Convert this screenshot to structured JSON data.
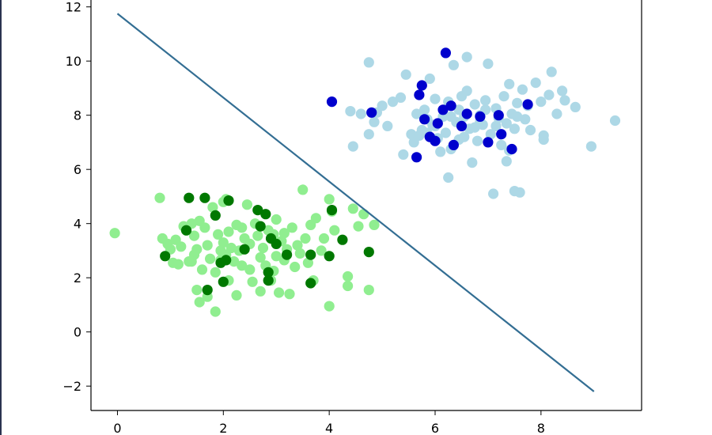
{
  "chart_data": {
    "type": "scatter",
    "title": "",
    "xlabel": "",
    "ylabel": "",
    "xlim": [
      -0.5,
      9.9
    ],
    "ylim": [
      -2.9,
      12.4
    ],
    "xticks": [
      0,
      2,
      4,
      6,
      8
    ],
    "yticks": [
      -2,
      0,
      2,
      4,
      6,
      8,
      10,
      12
    ],
    "xtick_labels": [
      "0",
      "2",
      "4",
      "6",
      "8"
    ],
    "ytick_labels": [
      "−2",
      "0",
      "2",
      "4",
      "6",
      "8",
      "10",
      "12"
    ],
    "grid": false,
    "legend": null,
    "series": [
      {
        "color": "#90ee90",
        "points": [
          [
            -0.05,
            3.65
          ],
          [
            0.8,
            4.95
          ],
          [
            0.85,
            3.45
          ],
          [
            0.95,
            3.25
          ],
          [
            1.0,
            3.05
          ],
          [
            1.05,
            2.55
          ],
          [
            1.1,
            3.4
          ],
          [
            1.15,
            2.5
          ],
          [
            1.25,
            3.9
          ],
          [
            1.3,
            3.75
          ],
          [
            1.35,
            2.6
          ],
          [
            1.4,
            4.0
          ],
          [
            1.45,
            3.55
          ],
          [
            1.45,
            2.85
          ],
          [
            1.5,
            3.05
          ],
          [
            1.5,
            1.55
          ],
          [
            1.55,
            4.1
          ],
          [
            1.6,
            2.3
          ],
          [
            1.65,
            3.85
          ],
          [
            1.7,
            1.3
          ],
          [
            1.7,
            3.2
          ],
          [
            1.75,
            2.7
          ],
          [
            1.8,
            4.6
          ],
          [
            1.85,
            2.2
          ],
          [
            1.85,
            0.75
          ],
          [
            1.9,
            3.6
          ],
          [
            1.95,
            2.65
          ],
          [
            2.0,
            3.3
          ],
          [
            2.05,
            4.9
          ],
          [
            2.05,
            2.85
          ],
          [
            2.1,
            3.7
          ],
          [
            2.1,
            1.9
          ],
          [
            2.15,
            3.1
          ],
          [
            2.2,
            2.6
          ],
          [
            2.25,
            1.35
          ],
          [
            2.25,
            3.95
          ],
          [
            2.3,
            3.0
          ],
          [
            2.35,
            2.45
          ],
          [
            2.4,
            3.45
          ],
          [
            2.45,
            4.7
          ],
          [
            2.5,
            2.3
          ],
          [
            2.5,
            3.25
          ],
          [
            2.55,
            1.85
          ],
          [
            2.6,
            4.0
          ],
          [
            2.65,
            3.55
          ],
          [
            2.7,
            2.75
          ],
          [
            2.75,
            3.1
          ],
          [
            2.8,
            2.45
          ],
          [
            2.85,
            3.75
          ],
          [
            2.9,
            1.9
          ],
          [
            2.95,
            3.6
          ],
          [
            3.0,
            2.8
          ],
          [
            3.0,
            4.15
          ],
          [
            3.05,
            1.45
          ],
          [
            3.1,
            3.35
          ],
          [
            3.15,
            2.65
          ],
          [
            3.2,
            3.05
          ],
          [
            3.25,
            1.4
          ],
          [
            3.3,
            3.85
          ],
          [
            3.35,
            2.4
          ],
          [
            3.4,
            3.2
          ],
          [
            3.45,
            2.9
          ],
          [
            3.5,
            5.25
          ],
          [
            3.55,
            3.45
          ],
          [
            3.6,
            2.55
          ],
          [
            3.65,
            3.95
          ],
          [
            3.7,
            1.9
          ],
          [
            3.75,
            4.2
          ],
          [
            3.85,
            3.0
          ],
          [
            3.9,
            3.45
          ],
          [
            4.0,
            4.9
          ],
          [
            4.0,
            0.95
          ],
          [
            4.05,
            4.45
          ],
          [
            4.1,
            3.75
          ],
          [
            4.35,
            2.05
          ],
          [
            4.35,
            1.7
          ],
          [
            4.45,
            4.55
          ],
          [
            4.55,
            3.9
          ],
          [
            4.65,
            4.35
          ],
          [
            4.75,
            1.55
          ],
          [
            4.85,
            3.95
          ],
          [
            2.0,
            4.8
          ],
          [
            1.4,
            2.6
          ],
          [
            2.7,
            1.5
          ],
          [
            1.55,
            1.1
          ],
          [
            2.35,
            3.85
          ],
          [
            3.15,
            3.65
          ],
          [
            1.95,
            3.0
          ],
          [
            1.2,
            3.15
          ],
          [
            2.95,
            2.25
          ]
        ]
      },
      {
        "color": "#007800",
        "points": [
          [
            0.9,
            2.8
          ],
          [
            1.3,
            3.75
          ],
          [
            1.35,
            4.95
          ],
          [
            1.65,
            4.95
          ],
          [
            1.85,
            4.3
          ],
          [
            1.95,
            2.55
          ],
          [
            2.0,
            1.85
          ],
          [
            2.05,
            2.65
          ],
          [
            2.1,
            4.85
          ],
          [
            2.4,
            3.05
          ],
          [
            2.65,
            4.5
          ],
          [
            2.7,
            3.9
          ],
          [
            2.8,
            4.35
          ],
          [
            2.85,
            2.2
          ],
          [
            2.9,
            3.45
          ],
          [
            3.0,
            3.25
          ],
          [
            3.2,
            2.85
          ],
          [
            3.65,
            2.85
          ],
          [
            3.65,
            1.8
          ],
          [
            4.0,
            2.8
          ],
          [
            4.05,
            4.5
          ],
          [
            4.25,
            3.4
          ],
          [
            4.75,
            2.95
          ],
          [
            1.7,
            1.55
          ],
          [
            2.85,
            1.9
          ]
        ]
      },
      {
        "color": "#add8e6",
        "points": [
          [
            4.4,
            8.15
          ],
          [
            4.45,
            6.85
          ],
          [
            4.6,
            8.05
          ],
          [
            4.75,
            9.95
          ],
          [
            4.75,
            7.3
          ],
          [
            4.85,
            7.75
          ],
          [
            4.9,
            8.1
          ],
          [
            5.0,
            8.35
          ],
          [
            5.1,
            7.6
          ],
          [
            5.2,
            8.5
          ],
          [
            5.35,
            8.65
          ],
          [
            5.4,
            6.55
          ],
          [
            5.45,
            9.5
          ],
          [
            5.55,
            7.3
          ],
          [
            5.6,
            7.0
          ],
          [
            5.65,
            8.05
          ],
          [
            5.75,
            7.45
          ],
          [
            5.8,
            8.2
          ],
          [
            5.85,
            7.85
          ],
          [
            5.9,
            9.35
          ],
          [
            5.95,
            7.65
          ],
          [
            6.0,
            8.6
          ],
          [
            6.05,
            7.15
          ],
          [
            6.1,
            6.65
          ],
          [
            6.15,
            7.95
          ],
          [
            6.2,
            7.35
          ],
          [
            6.25,
            8.5
          ],
          [
            6.3,
            6.75
          ],
          [
            6.35,
            9.85
          ],
          [
            6.4,
            7.75
          ],
          [
            6.45,
            7.1
          ],
          [
            6.5,
            8.7
          ],
          [
            6.55,
            7.95
          ],
          [
            6.6,
            10.15
          ],
          [
            6.65,
            7.5
          ],
          [
            6.7,
            6.25
          ],
          [
            6.75,
            8.4
          ],
          [
            6.8,
            7.05
          ],
          [
            6.85,
            8.0
          ],
          [
            6.9,
            7.65
          ],
          [
            6.95,
            8.55
          ],
          [
            7.0,
            9.9
          ],
          [
            7.05,
            7.3
          ],
          [
            7.1,
            5.1
          ],
          [
            7.15,
            8.25
          ],
          [
            7.2,
            7.9
          ],
          [
            7.25,
            6.9
          ],
          [
            7.3,
            8.7
          ],
          [
            7.35,
            6.3
          ],
          [
            7.4,
            9.15
          ],
          [
            7.45,
            8.05
          ],
          [
            7.5,
            7.5
          ],
          [
            7.5,
            5.2
          ],
          [
            7.55,
            8.45
          ],
          [
            7.6,
            5.15
          ],
          [
            7.65,
            8.95
          ],
          [
            7.7,
            7.85
          ],
          [
            7.75,
            8.35
          ],
          [
            7.8,
            7.45
          ],
          [
            7.9,
            9.2
          ],
          [
            8.0,
            8.5
          ],
          [
            8.05,
            7.1
          ],
          [
            8.15,
            8.75
          ],
          [
            8.2,
            9.6
          ],
          [
            8.3,
            8.05
          ],
          [
            8.4,
            8.9
          ],
          [
            8.45,
            8.55
          ],
          [
            8.65,
            8.3
          ],
          [
            8.95,
            6.85
          ],
          [
            9.4,
            7.8
          ],
          [
            6.0,
            7.6
          ],
          [
            6.3,
            7.95
          ],
          [
            6.55,
            7.2
          ],
          [
            6.85,
            7.75
          ],
          [
            7.15,
            7.6
          ],
          [
            6.45,
            8.2
          ],
          [
            6.75,
            7.55
          ],
          [
            5.7,
            7.25
          ],
          [
            7.35,
            7.7
          ],
          [
            6.25,
            5.7
          ],
          [
            5.85,
            7.35
          ],
          [
            6.95,
            8.2
          ],
          [
            7.55,
            7.95
          ],
          [
            6.6,
            8.9
          ],
          [
            8.05,
            7.25
          ],
          [
            7.4,
            6.7
          ]
        ]
      },
      {
        "color": "#0000cd",
        "points": [
          [
            4.05,
            8.5
          ],
          [
            4.8,
            8.1
          ],
          [
            5.7,
            8.75
          ],
          [
            5.75,
            9.1
          ],
          [
            5.8,
            7.85
          ],
          [
            5.9,
            7.2
          ],
          [
            6.0,
            7.05
          ],
          [
            6.05,
            7.7
          ],
          [
            6.15,
            8.2
          ],
          [
            6.2,
            10.3
          ],
          [
            6.3,
            8.35
          ],
          [
            6.35,
            6.9
          ],
          [
            6.5,
            7.6
          ],
          [
            6.6,
            8.05
          ],
          [
            6.85,
            7.95
          ],
          [
            7.0,
            7.0
          ],
          [
            7.2,
            8.0
          ],
          [
            7.25,
            7.3
          ],
          [
            7.45,
            6.75
          ],
          [
            7.75,
            8.4
          ],
          [
            5.65,
            6.45
          ]
        ]
      }
    ],
    "lines": [
      {
        "color": "#336e93",
        "x": [
          0,
          9
        ],
        "y": [
          11.75,
          -2.2
        ]
      }
    ]
  }
}
